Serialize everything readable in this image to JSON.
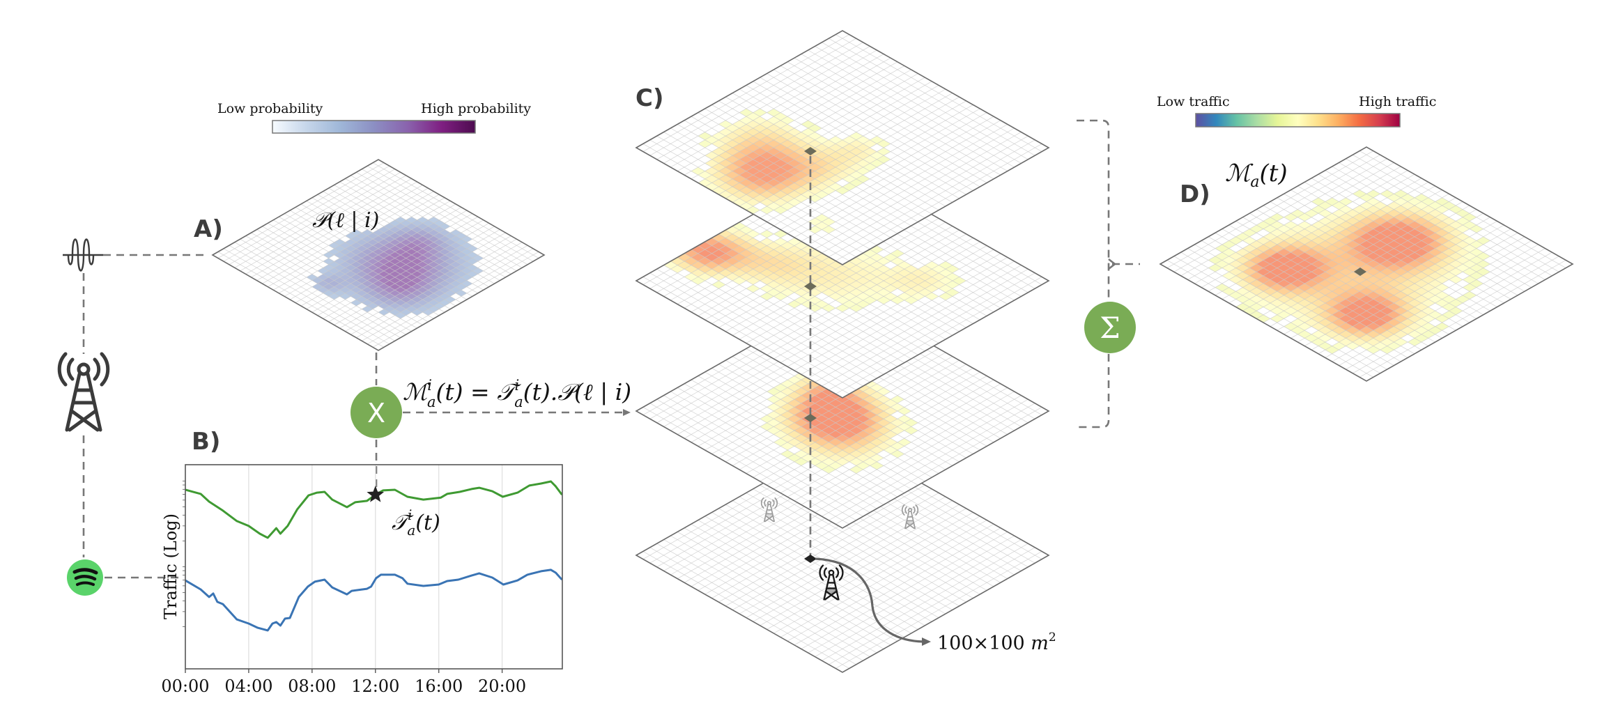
{
  "panels": {
    "a": {
      "label": "A)",
      "formula": "𝒫(ℓ | i)",
      "colorbar": {
        "low_label": "Low probability",
        "high_label": "High probability",
        "stops": [
          "#f7fbff",
          "#c6d6ea",
          "#9fb7d8",
          "#8c8fc3",
          "#8a63ad",
          "#7f1f82",
          "#4d0b4f"
        ]
      }
    },
    "b": {
      "label": "B)",
      "annotation": "𝒯ᵢₐ(t)",
      "annotation_parts": {
        "base": "𝒯",
        "sup": "i",
        "sub": "a",
        "arg": "(t)"
      }
    },
    "c": {
      "label": "C)",
      "cell_size_note": "100×100 m²",
      "cell_size_parts": {
        "base": "100×100 ",
        "unit": "m",
        "exp": "2"
      }
    },
    "d": {
      "label": "D)",
      "formula_parts": {
        "base": "ℳ",
        "sub": "a",
        "arg": "(t)"
      },
      "colorbar": {
        "low_label": "Low traffic",
        "high_label": "High traffic",
        "stops": [
          "#5e4fa2",
          "#3288bd",
          "#66c2a5",
          "#abdda4",
          "#e6f598",
          "#ffffbf",
          "#fee08b",
          "#fdae61",
          "#f46d43",
          "#d53e4f",
          "#9e0142"
        ]
      }
    }
  },
  "operators": {
    "multiply": {
      "symbol": "X",
      "color": "#7aac55"
    },
    "sum": {
      "symbol": "Σ",
      "color": "#7aac55"
    }
  },
  "equation": {
    "lhs": {
      "base": "ℳ",
      "sup": "i",
      "sub": "a",
      "arg": "(t)"
    },
    "eq": " = ",
    "rhs": {
      "base": "𝒯",
      "sup": "i",
      "sub": "a",
      "arg": "(t).𝒫(ℓ | i)"
    }
  },
  "icons": {
    "signal": "signal-wave-icon",
    "tower": "cell-tower-icon",
    "app": "spotify-icon",
    "app_color": "#5ad36a"
  },
  "chart_data": {
    "type": "line",
    "title": "",
    "xlabel": "",
    "ylabel": "Traffic (Log)",
    "x_tick_labels": [
      "00:00",
      "04:00",
      "08:00",
      "12:00",
      "16:00",
      "20:00"
    ],
    "x_ticks_hours": [
      0,
      4,
      8,
      12,
      16,
      20
    ],
    "xlim": [
      0,
      23.8
    ],
    "ylim": [
      0,
      10
    ],
    "y_scale": "log (relative, unlabeled)",
    "grid": "vertical",
    "marker": {
      "series": "app traffic (green)",
      "hour": 12.0,
      "symbol": "star"
    },
    "series": [
      {
        "name": "green",
        "color": "#3f9a32",
        "hours": [
          0,
          0.97,
          1.5,
          2.37,
          3.25,
          4.0,
          4.7,
          5.2,
          5.74,
          6.0,
          6.46,
          7.07,
          7.78,
          8.31,
          8.79,
          9.27,
          10.2,
          10.72,
          11.47,
          12.0,
          12.48,
          13.23,
          14.02,
          15.03,
          16.13,
          16.53,
          17.32,
          18.07,
          18.55,
          19.38,
          20.04,
          20.97,
          21.72,
          22.46,
          23.08,
          23.38,
          23.78
        ],
        "values": [
          8.77,
          8.57,
          8.19,
          7.75,
          7.24,
          7.0,
          6.62,
          6.42,
          6.89,
          6.62,
          7.0,
          7.82,
          8.5,
          8.63,
          8.67,
          8.29,
          7.92,
          8.16,
          8.23,
          8.53,
          8.74,
          8.77,
          8.43,
          8.29,
          8.39,
          8.57,
          8.67,
          8.81,
          8.87,
          8.7,
          8.43,
          8.63,
          8.98,
          9.08,
          9.18,
          8.94,
          8.53
        ]
      },
      {
        "name": "blue",
        "color": "#3a74b4",
        "hours": [
          0,
          0.97,
          1.5,
          1.76,
          2.02,
          2.37,
          3.25,
          4.0,
          4.57,
          5.2,
          5.5,
          5.74,
          6.0,
          6.29,
          6.6,
          7.16,
          7.74,
          8.18,
          8.79,
          9.27,
          10.2,
          10.5,
          11.47,
          11.73,
          12.04,
          12.35,
          13.23,
          13.71,
          14.02,
          15.03,
          15.99,
          16.53,
          17.23,
          18.07,
          18.55,
          19.38,
          20.08,
          20.97,
          21.59,
          22.46,
          23.08,
          23.38,
          23.78
        ],
        "values": [
          4.33,
          3.89,
          3.52,
          3.69,
          3.28,
          3.17,
          2.42,
          2.22,
          2.01,
          1.88,
          2.22,
          2.29,
          2.12,
          2.46,
          2.49,
          3.52,
          4.03,
          4.27,
          4.37,
          3.99,
          3.65,
          3.82,
          3.92,
          4.03,
          4.44,
          4.61,
          4.61,
          4.44,
          4.17,
          4.06,
          4.13,
          4.3,
          4.37,
          4.57,
          4.68,
          4.47,
          4.13,
          4.33,
          4.61,
          4.78,
          4.85,
          4.71,
          4.37
        ]
      }
    ]
  },
  "heatmaps": {
    "grid_cells": 30,
    "probability": {
      "threshold": 0.12,
      "blobs": [
        {
          "u": 0.52,
          "v": 0.62,
          "s": 0.16,
          "a": 1.0
        },
        {
          "u": 0.38,
          "v": 0.75,
          "s": 0.1,
          "a": 0.45
        },
        {
          "u": 0.2,
          "v": 0.5,
          "s": 0.05,
          "a": 0.35
        },
        {
          "u": 0.7,
          "v": 0.55,
          "s": 0.08,
          "a": 0.35
        }
      ]
    },
    "layers": [
      {
        "name": "service-layer-1",
        "threshold": 0.18,
        "peak": 0.78,
        "blobs": [
          {
            "u": 0.2,
            "v": 0.42,
            "s": 0.13,
            "a": 1.0
          },
          {
            "u": 0.35,
            "v": 0.25,
            "s": 0.12,
            "a": 0.4
          },
          {
            "u": 0.55,
            "v": 0.55,
            "s": 0.07,
            "a": 0.3
          },
          {
            "u": 0.4,
            "v": 0.55,
            "s": 0.1,
            "a": 0.35
          },
          {
            "u": 0.12,
            "v": 0.78,
            "s": 0.05,
            "a": 0.3
          }
        ]
      },
      {
        "name": "service-layer-2",
        "threshold": 0.18,
        "peak": 0.8,
        "blobs": [
          {
            "u": 0.3,
            "v": 0.05,
            "s": 0.1,
            "a": 1.0
          },
          {
            "u": 0.5,
            "v": 0.45,
            "s": 0.17,
            "a": 0.42
          },
          {
            "u": 0.7,
            "v": 0.7,
            "s": 0.1,
            "a": 0.35
          },
          {
            "u": 0.4,
            "v": 0.25,
            "s": 0.1,
            "a": 0.35
          }
        ]
      },
      {
        "name": "service-layer-3",
        "threshold": 0.18,
        "peak": 0.8,
        "blobs": [
          {
            "u": 0.47,
            "v": 0.48,
            "s": 0.12,
            "a": 1.0
          },
          {
            "u": 0.4,
            "v": 0.62,
            "s": 0.14,
            "a": 0.5
          },
          {
            "u": 0.58,
            "v": 0.35,
            "s": 0.08,
            "a": 0.4
          }
        ]
      },
      {
        "name": "antenna-grid-layer",
        "threshold": 2,
        "peak": 0,
        "blobs": []
      }
    ],
    "aggregate": {
      "threshold": 0.16,
      "peak": 0.8,
      "blobs": [
        {
          "u": 0.28,
          "v": 0.32,
          "s": 0.1,
          "a": 0.95
        },
        {
          "u": 0.28,
          "v": 0.72,
          "s": 0.1,
          "a": 0.9
        },
        {
          "u": 0.68,
          "v": 0.48,
          "s": 0.12,
          "a": 0.95
        },
        {
          "u": 0.45,
          "v": 0.5,
          "s": 0.28,
          "a": 0.5
        }
      ]
    }
  }
}
